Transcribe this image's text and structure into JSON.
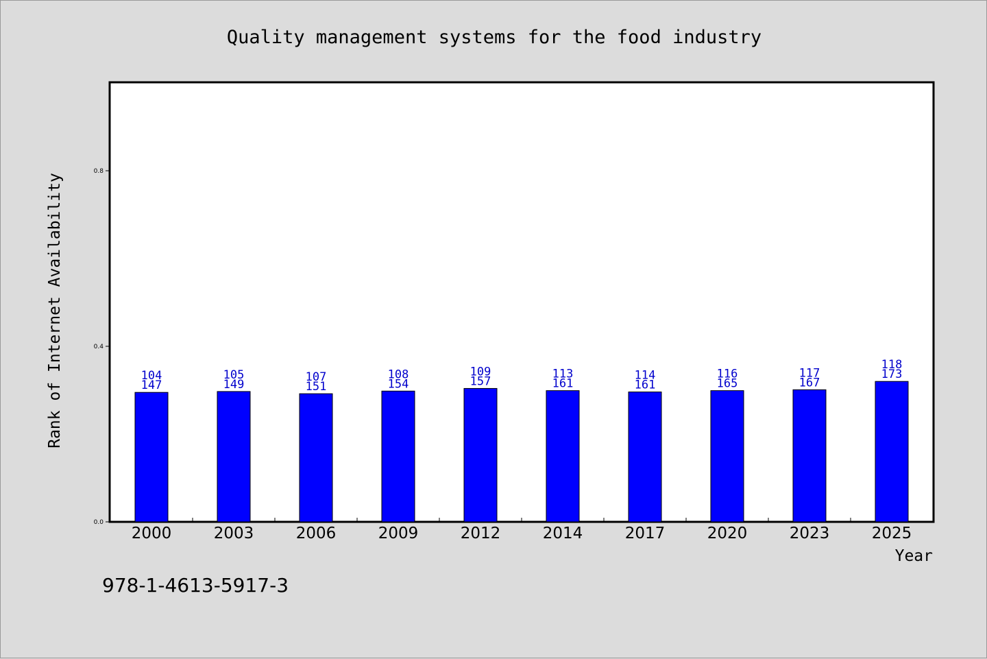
{
  "chart_data": {
    "type": "bar",
    "title": "Quality management systems for the food industry",
    "xlabel": "Year",
    "ylabel": "Rank of Internet Availability",
    "footer_text": "978-1-4613-5917-3",
    "categories": [
      "2000",
      "2003",
      "2006",
      "2009",
      "2012",
      "2014",
      "2017",
      "2020",
      "2023",
      "2025"
    ],
    "values": [
      0.295,
      0.297,
      0.292,
      0.298,
      0.304,
      0.299,
      0.296,
      0.299,
      0.301,
      0.32
    ],
    "label_top": [
      "104",
      "105",
      "107",
      "108",
      "109",
      "113",
      "114",
      "116",
      "117",
      "118"
    ],
    "label_bottom": [
      "147",
      "149",
      "151",
      "154",
      "157",
      "161",
      "161",
      "165",
      "167",
      "173"
    ],
    "y_ticks": [
      "0.0",
      "0.4",
      "0.8"
    ],
    "y_tick_values": [
      0.0,
      0.4,
      0.8
    ],
    "ylim": [
      0,
      1.0
    ],
    "grid": false,
    "colors": {
      "bar": "#0000ff",
      "bar_label": "#0000cc",
      "background": "#dcdcdc",
      "plot_bg": "#ffffff"
    }
  }
}
